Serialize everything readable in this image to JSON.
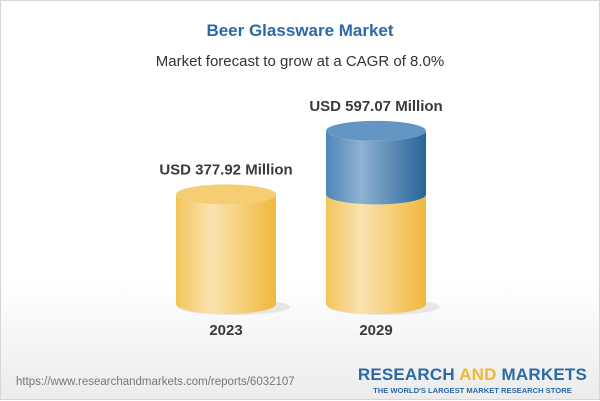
{
  "title": "Beer Glassware Market",
  "subtitle": "Market forecast to grow at a CAGR of 8.0%",
  "chart_data": {
    "type": "bar",
    "categories": [
      "2023",
      "2029"
    ],
    "values": [
      377.92,
      597.07
    ],
    "data_labels": [
      "USD 377.92 Million",
      "USD 597.07 Million"
    ],
    "unit": "USD Million",
    "colors": {
      "base": "#f2c050",
      "growth": "#3f7cb0"
    }
  },
  "footer": {
    "url": "https://www.researchandmarkets.com/reports/6032107",
    "logo_research": "RESEARCH",
    "logo_and": "AND",
    "logo_markets": "MARKETS",
    "logo_tagline": "THE WORLD'S LARGEST MARKET RESEARCH STORE"
  }
}
